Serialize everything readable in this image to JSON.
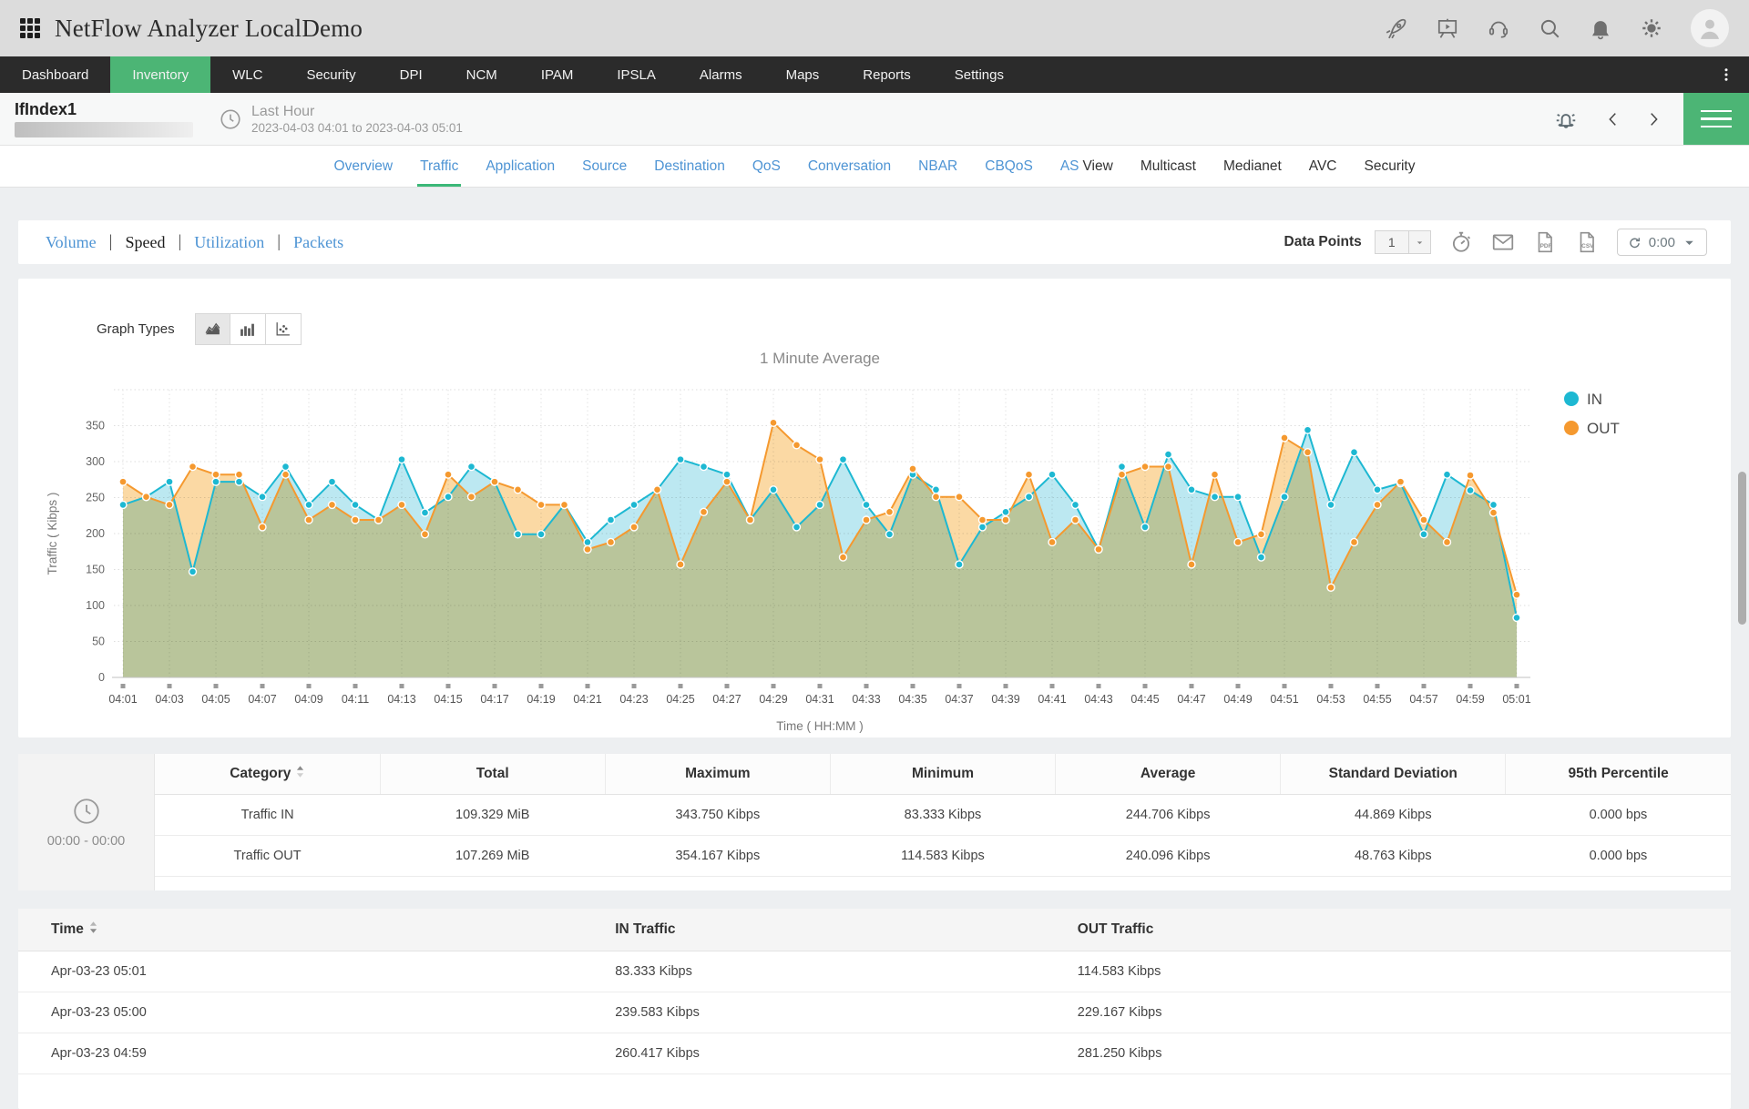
{
  "header": {
    "title": "NetFlow Analyzer LocalDemo",
    "icons": [
      "rocket-icon",
      "presentation-icon",
      "headset-icon",
      "search-icon",
      "bell-icon",
      "gear-icon"
    ]
  },
  "nav": {
    "items": [
      "Dashboard",
      "Inventory",
      "WLC",
      "Security",
      "DPI",
      "NCM",
      "IPAM",
      "IPSLA",
      "Alarms",
      "Maps",
      "Reports",
      "Settings"
    ],
    "active": "Inventory"
  },
  "subheader": {
    "title": "IfIndex1",
    "period_label": "Last Hour",
    "period_range": "2023-04-03 04:01 to 2023-04-03 05:01"
  },
  "tabs": [
    {
      "label": "Overview",
      "style": "link"
    },
    {
      "label": "Traffic",
      "style": "link",
      "active": true
    },
    {
      "label": "Application",
      "style": "link"
    },
    {
      "label": "Source",
      "style": "link"
    },
    {
      "label": "Destination",
      "style": "link"
    },
    {
      "label": "QoS",
      "style": "link"
    },
    {
      "label": "Conversation",
      "style": "link"
    },
    {
      "label": "NBAR",
      "style": "link"
    },
    {
      "label": "CBQoS",
      "style": "link"
    },
    {
      "label": "AS View",
      "style": "split"
    },
    {
      "label": "Multicast",
      "style": "plain"
    },
    {
      "label": "Medianet",
      "style": "plain"
    },
    {
      "label": "AVC",
      "style": "plain"
    },
    {
      "label": "Security",
      "style": "plain"
    }
  ],
  "toolbar": {
    "views": [
      "Volume",
      "Speed",
      "Utilization",
      "Packets"
    ],
    "active_view": "Speed",
    "data_points_label": "Data Points",
    "data_points_value": "1",
    "tool_icons": [
      "timer-icon",
      "envelope-icon",
      "pdf-export-icon",
      "csv-export-icon"
    ],
    "refresh_value": "0:00"
  },
  "chart_card": {
    "graph_types_label": "Graph Types",
    "graph_type_buttons": [
      "area-graph-icon",
      "bar-graph-icon",
      "scatter-graph-icon"
    ],
    "active_graph_type": 0
  },
  "chart_data": {
    "type": "area",
    "title": "1 Minute Average",
    "xlabel": "Time ( HH:MM )",
    "ylabel": "Traffic ( Kibps )",
    "ylim": [
      0,
      400
    ],
    "yticks": [
      0,
      50,
      100,
      150,
      200,
      250,
      300,
      350
    ],
    "grid": true,
    "legend_position": "right",
    "x": [
      "04:01",
      "04:02",
      "04:03",
      "04:04",
      "04:05",
      "04:06",
      "04:07",
      "04:08",
      "04:09",
      "04:10",
      "04:11",
      "04:12",
      "04:13",
      "04:14",
      "04:15",
      "04:16",
      "04:17",
      "04:18",
      "04:19",
      "04:20",
      "04:21",
      "04:22",
      "04:23",
      "04:24",
      "04:25",
      "04:26",
      "04:27",
      "04:28",
      "04:29",
      "04:30",
      "04:31",
      "04:32",
      "04:33",
      "04:34",
      "04:35",
      "04:36",
      "04:37",
      "04:38",
      "04:39",
      "04:40",
      "04:41",
      "04:42",
      "04:43",
      "04:44",
      "04:45",
      "04:46",
      "04:47",
      "04:48",
      "04:49",
      "04:50",
      "04:51",
      "04:52",
      "04:53",
      "04:54",
      "04:55",
      "04:56",
      "04:57",
      "04:58",
      "04:59",
      "05:00",
      "05:01"
    ],
    "xtick_every": 2,
    "series": [
      {
        "name": "IN",
        "color": "#1db8d2",
        "fill": "#bce8f1",
        "values": [
          240,
          251,
          272,
          147,
          272,
          272,
          251,
          293,
          240,
          272,
          240,
          219,
          303,
          229,
          251,
          293,
          272,
          199,
          199,
          240,
          188,
          219,
          240,
          261,
          303,
          293,
          282,
          219,
          261,
          209,
          240,
          303,
          240,
          199,
          282,
          261,
          157,
          209,
          230,
          251,
          282,
          240,
          178,
          293,
          209,
          310,
          261,
          251,
          251,
          167,
          251,
          344,
          240,
          313,
          261,
          270,
          199,
          282,
          260,
          240,
          83
        ]
      },
      {
        "name": "OUT",
        "color": "#f5992f",
        "fill": "#fbd9a4",
        "values": [
          272,
          251,
          240,
          293,
          282,
          282,
          209,
          282,
          219,
          240,
          219,
          219,
          240,
          199,
          282,
          251,
          272,
          261,
          240,
          240,
          178,
          188,
          209,
          261,
          157,
          230,
          272,
          219,
          354,
          323,
          303,
          167,
          219,
          230,
          290,
          251,
          251,
          219,
          219,
          282,
          188,
          219,
          178,
          282,
          293,
          293,
          157,
          282,
          188,
          199,
          333,
          313,
          125,
          188,
          240,
          272,
          219,
          188,
          281,
          229,
          115
        ]
      }
    ]
  },
  "stats_table": {
    "time_range": "00:00 - 00:00",
    "headers": [
      "Category",
      "Total",
      "Maximum",
      "Minimum",
      "Average",
      "Standard Deviation",
      "95th Percentile"
    ],
    "rows": [
      [
        "Traffic IN",
        "109.329 MiB",
        "343.750 Kibps",
        "83.333 Kibps",
        "244.706 Kibps",
        "44.869 Kibps",
        "0.000 bps"
      ],
      [
        "Traffic OUT",
        "107.269 MiB",
        "354.167 Kibps",
        "114.583 Kibps",
        "240.096 Kibps",
        "48.763 Kibps",
        "0.000 bps"
      ]
    ]
  },
  "time_table": {
    "headers": [
      "Time",
      "IN Traffic",
      "OUT Traffic"
    ],
    "rows": [
      [
        "Apr-03-23 05:01",
        "83.333 Kibps",
        "114.583 Kibps"
      ],
      [
        "Apr-03-23 05:00",
        "239.583 Kibps",
        "229.167 Kibps"
      ],
      [
        "Apr-03-23 04:59",
        "260.417 Kibps",
        "281.250 Kibps"
      ]
    ]
  },
  "colors": {
    "accent_green": "#4cb575",
    "link_blue": "#4e94d4",
    "in_series": "#1db8d2",
    "out_series": "#f5992f"
  }
}
